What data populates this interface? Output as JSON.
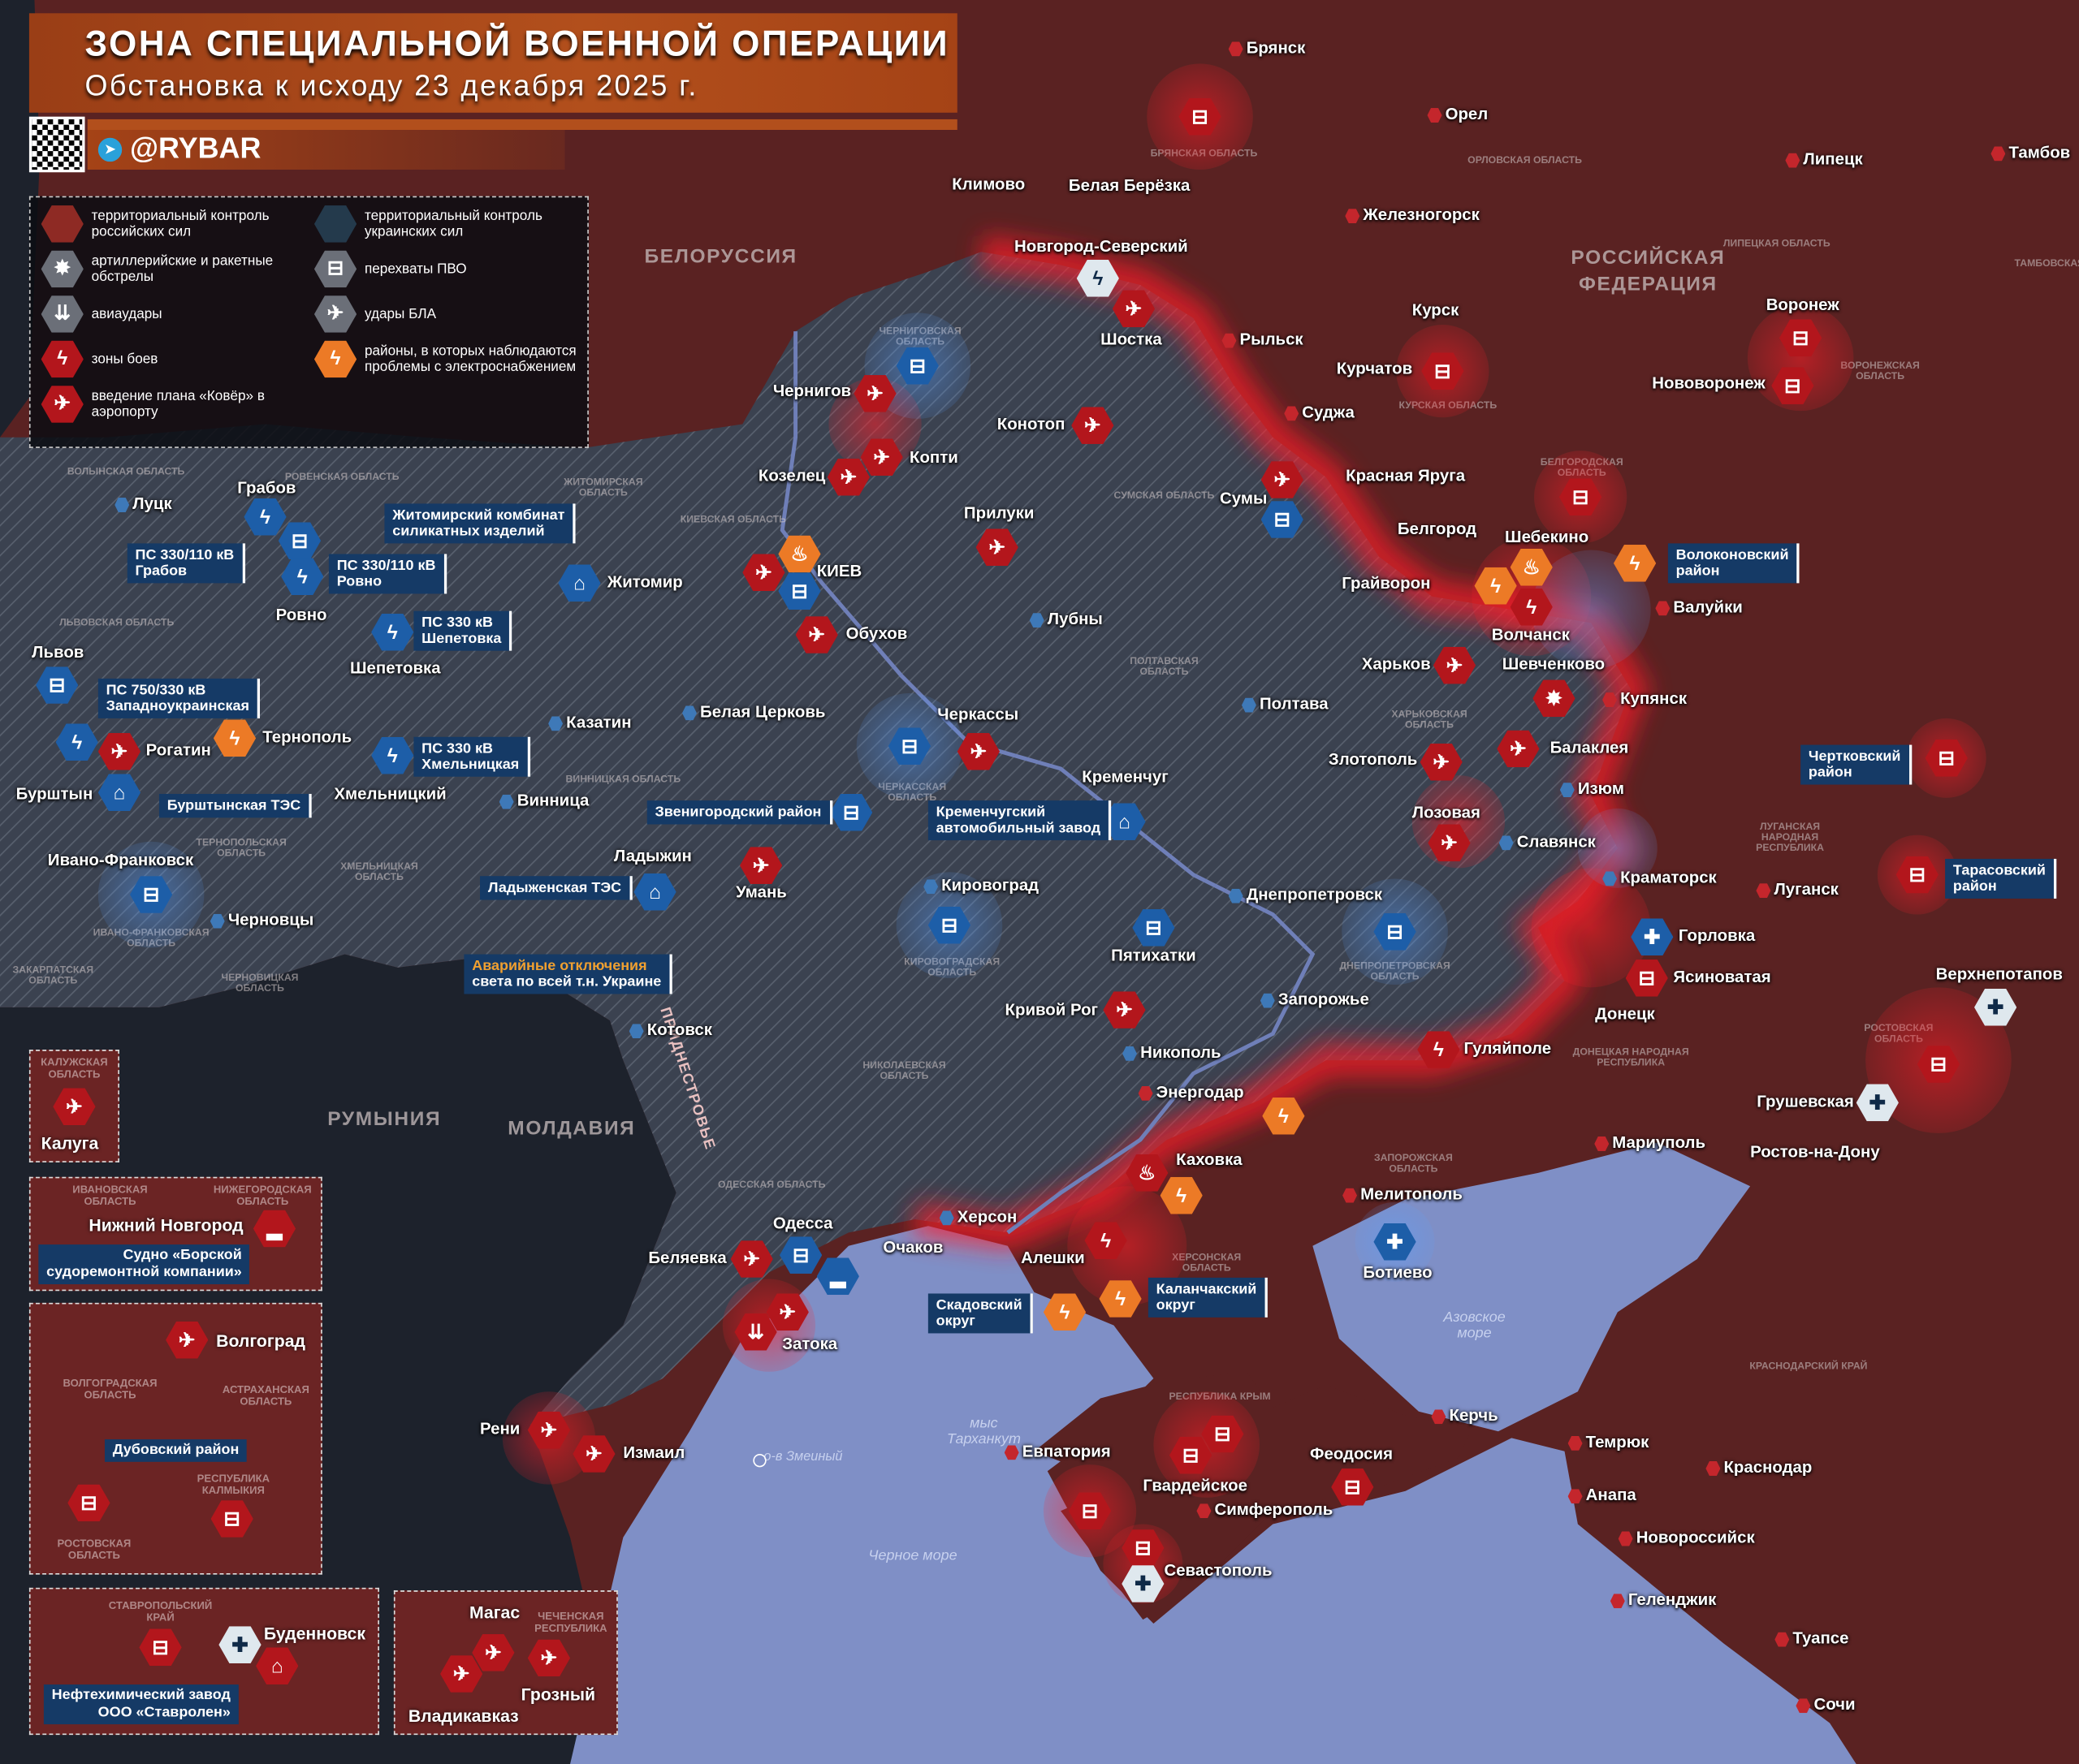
{
  "header": {
    "title": "ЗОНА СПЕЦИАЛЬНОЙ ВОЕННОЙ ОПЕРАЦИИ",
    "subtitle": "Обстановка к исходу 23 декабря 2025 г.",
    "channel": "@RYBAR"
  },
  "colors": {
    "russia": "#5a2222",
    "ukraine": "#3b4250",
    "sea": "#7f8fc6",
    "strike": "#b3161c",
    "ukr_marker": "#1d5ea8",
    "power": "#ec7a26",
    "callout": "#153a66"
  },
  "legend": [
    {
      "icon": "russia-control-hex",
      "label": "территориальный контроль российских сил"
    },
    {
      "icon": "ukraine-control-hex",
      "label": "территориальный контроль украинских сил"
    },
    {
      "icon": "artillery-icon",
      "label": "артиллерийские и ракетные обстрелы"
    },
    {
      "icon": "air-defense-icon",
      "label": "перехваты ПВО"
    },
    {
      "icon": "airstrike-icon",
      "label": "авиаудары"
    },
    {
      "icon": "drone-icon",
      "label": "удары БЛА"
    },
    {
      "icon": "battle-zone-icon",
      "label": "зоны боев"
    },
    {
      "icon": "power-outage-icon",
      "label": "районы, в которых наблюдаются проблемы с электроснабжением"
    },
    {
      "icon": "kover-plan-icon",
      "label": "введение плана «Ковёр» в аэропорту"
    }
  ],
  "countries": [
    "БЕЛОРУССИЯ",
    "РОССИЙСКАЯ ФЕДЕРАЦИЯ",
    "РУМЫНИЯ",
    "МОЛДАВИЯ",
    "ПРИДНЕСТРОВЬЕ"
  ],
  "seas": [
    "Черное море",
    "Азовское море",
    "мыс Тарханкут",
    "о-в Змеиный"
  ],
  "regions": [
    "ВОЛЫНСКАЯ ОБЛАСТЬ",
    "РОВЕНСКАЯ ОБЛАСТЬ",
    "ЖИТОМИРСКАЯ ОБЛАСТЬ",
    "КИЕВСКАЯ ОБЛАСТЬ",
    "ЧЕРНИГОВСКАЯ ОБЛАСТЬ",
    "СУМСКАЯ ОБЛАСТЬ",
    "ЛЬВОВСКАЯ ОБЛАСТЬ",
    "ТЕРНОПОЛЬСКАЯ ОБЛАСТЬ",
    "ХМЕЛЬНИЦКАЯ ОБЛАСТЬ",
    "ВИННИЦКАЯ ОБЛАСТЬ",
    "ЧЕРКАССКАЯ ОБЛАСТЬ",
    "ПОЛТАВСКАЯ ОБЛАСТЬ",
    "ХАРЬКОВСКАЯ ОБЛАСТЬ",
    "ЛУГАНСКАЯ НАРОДНАЯ РЕСПУБЛИКА",
    "ДОНЕЦКАЯ НАРОДНАЯ РЕСПУБЛИКА",
    "ДНЕПРОПЕТРОВСКАЯ ОБЛАСТЬ",
    "КИРОВОГРАДСКАЯ ОБЛАСТЬ",
    "НИКОЛАЕВСКАЯ ОБЛАСТЬ",
    "ОДЕССКАЯ ОБЛАСТЬ",
    "ЗАПОРОЖСКАЯ ОБЛАСТЬ",
    "ХЕРСОНСКАЯ ОБЛАСТЬ",
    "ИВАНО-ФРАНКОВСКАЯ ОБЛАСТЬ",
    "ЧЕРНОВИЦКАЯ ОБЛАСТЬ",
    "ЗАКАРПАТСКАЯ ОБЛАСТЬ",
    "БРЯНСКАЯ ОБЛАСТЬ",
    "ОРЛОВСКАЯ ОБЛАСТЬ",
    "КУРСКАЯ ОБЛАСТЬ",
    "ЛИПЕЦКАЯ ОБЛАСТЬ",
    "ВОРОНЕЖСКАЯ ОБЛАСТЬ",
    "ТАМБОВСКАЯ ОБЛ",
    "БЕЛГОРОДСКАЯ ОБЛАСТЬ",
    "РОСТОВСКАЯ ОБЛАСТЬ",
    "РЕСПУБЛИКА КРЫМ",
    "КРАСНОДАРСКИЙ КРАЙ"
  ],
  "cities": [
    "Брянск",
    "Орел",
    "Липецк",
    "Тамбов",
    "Климово",
    "Белая Берёзка",
    "Железногорск",
    "Новгород-Северский",
    "Курск",
    "Воронеж",
    "Шостка",
    "Рыльск",
    "Курчатов",
    "Нововоронеж",
    "Чернигов",
    "Конотоп",
    "Суджа",
    "Копти",
    "Козелец",
    "Красная Яруга",
    "Сумы",
    "Прилуки",
    "Луцк",
    "Грабов",
    "Белгород",
    "Шебекино",
    "Житомир",
    "КИЕВ",
    "Грайворон",
    "Валуйки",
    "Ровно",
    "Лубны",
    "Обухов",
    "Волчанск",
    "Шепетовка",
    "Харьков",
    "Шевченково",
    "Львов",
    "Купянск",
    "Казатин",
    "Белая Церковь",
    "Черкассы",
    "Полтава",
    "Тернополь",
    "Рогатин",
    "Балаклея",
    "Кременчуг",
    "Злотополь",
    "Бурштын",
    "Изюм",
    "Хмельницкий",
    "Винница",
    "Лозовая",
    "Славянск",
    "Ладыжин",
    "Ивано-Франковск",
    "Кировоград",
    "Краматорск",
    "Луганск",
    "Днепропетровск",
    "Умань",
    "Черновцы",
    "Пятихатки",
    "Горловка",
    "Ясиноватая",
    "Верхнепотапов",
    "Кривой Рог",
    "Запорожье",
    "Донецк",
    "Котовск",
    "Никополь",
    "Гуляйполе",
    "Энергодар",
    "Грушевская",
    "Мариуполь",
    "Ростов-на-Дону",
    "Каховка",
    "Мелитополь",
    "Херсон",
    "Очаков",
    "Алешки",
    "Беляевка",
    "Одесса",
    "Ботиево",
    "Затока",
    "Рени",
    "Измаил",
    "Керчь",
    "Темрюк",
    "Евпатория",
    "Феодосия",
    "Краснодар",
    "Гвардейское",
    "Симферополь",
    "Анапа",
    "Новороссийск",
    "Севастополь",
    "Геленджик",
    "Туапсе",
    "Сочи"
  ],
  "callouts": [
    [
      "ПС 330/110 кВ",
      "Грабов"
    ],
    [
      "ПС 330/110 кВ",
      "Ровно"
    ],
    [
      "Житомирский комбинат",
      "силикатных изделий"
    ],
    [
      "ПС 330 кВ",
      "Шепетовка"
    ],
    [
      "ПС 750/330 кВ",
      "Западноукраинская"
    ],
    [
      "Бурштынская ТЭС",
      ""
    ],
    [
      "ПС 330 кВ",
      "Хмельницкая"
    ],
    [
      "Ладыженская ТЭС",
      ""
    ],
    [
      "Звенигородский район",
      ""
    ],
    [
      "Кременчугский",
      "автомобильный завод"
    ],
    [
      "Аварийные отключения",
      "света по всей т.н. Украине"
    ],
    [
      "Волоконовский",
      "район"
    ],
    [
      "Чертковский",
      "район"
    ],
    [
      "Тарасовский",
      "район"
    ],
    [
      "Скадовский",
      "округ"
    ],
    [
      "Каланчакский",
      "округ"
    ]
  ],
  "markers": [
    {
      "icon": "air-defense",
      "side": "red"
    },
    {
      "icon": "battle-zone",
      "side": "white"
    },
    {
      "icon": "drone",
      "side": "red"
    },
    {
      "icon": "drone",
      "side": "red"
    },
    {
      "icon": "air-defense",
      "side": "blue"
    },
    {
      "icon": "drone",
      "side": "red"
    },
    {
      "icon": "drone",
      "side": "red"
    },
    {
      "icon": "drone",
      "side": "red"
    },
    {
      "icon": "drone",
      "side": "red"
    },
    {
      "icon": "air-defense",
      "side": "blue"
    },
    {
      "icon": "drone",
      "side": "red"
    },
    {
      "icon": "air-defense",
      "side": "red"
    },
    {
      "icon": "air-defense",
      "side": "red"
    },
    {
      "icon": "air-defense",
      "side": "red"
    },
    {
      "icon": "air-defense",
      "side": "red"
    },
    {
      "icon": "battle-zone",
      "side": "blue"
    },
    {
      "icon": "air-defense",
      "side": "blue"
    },
    {
      "icon": "battle-zone",
      "side": "blue"
    },
    {
      "icon": "factory",
      "side": "blue"
    },
    {
      "icon": "drone",
      "side": "red"
    },
    {
      "icon": "fire",
      "side": "orange"
    },
    {
      "icon": "air-defense",
      "side": "blue"
    },
    {
      "icon": "drone",
      "side": "red"
    },
    {
      "icon": "battle-zone",
      "side": "blue"
    },
    {
      "icon": "air-defense",
      "side": "blue"
    },
    {
      "icon": "battle-zone",
      "side": "blue"
    },
    {
      "icon": "drone",
      "side": "red"
    },
    {
      "icon": "power-outage",
      "side": "orange"
    },
    {
      "icon": "factory",
      "side": "blue"
    },
    {
      "icon": "battle-zone",
      "side": "blue"
    },
    {
      "icon": "air-defense",
      "side": "blue"
    },
    {
      "icon": "air-defense",
      "side": "blue"
    },
    {
      "icon": "drone",
      "side": "red"
    },
    {
      "icon": "air-defense",
      "side": "blue"
    },
    {
      "icon": "factory",
      "side": "blue"
    },
    {
      "icon": "drone",
      "side": "red"
    },
    {
      "icon": "factory",
      "side": "blue"
    },
    {
      "icon": "air-defense",
      "side": "blue"
    },
    {
      "icon": "air-defense",
      "side": "blue"
    },
    {
      "icon": "drone",
      "side": "red"
    },
    {
      "icon": "air-defense",
      "side": "blue"
    },
    {
      "icon": "drone",
      "side": "red"
    },
    {
      "icon": "drone",
      "side": "red"
    },
    {
      "icon": "artillery",
      "side": "red"
    },
    {
      "icon": "drone",
      "side": "red"
    },
    {
      "icon": "drone",
      "side": "red"
    },
    {
      "icon": "battle-zone",
      "side": "red"
    },
    {
      "icon": "power-outage",
      "side": "orange"
    },
    {
      "icon": "fire",
      "side": "orange"
    },
    {
      "icon": "power-outage",
      "side": "orange"
    },
    {
      "icon": "drone-ukr",
      "side": "blue"
    },
    {
      "icon": "air-defense",
      "side": "red"
    },
    {
      "icon": "battle-zone",
      "side": "red"
    },
    {
      "icon": "power-outage",
      "side": "orange"
    },
    {
      "icon": "fire",
      "side": "red"
    },
    {
      "icon": "power-outage",
      "side": "orange"
    },
    {
      "icon": "battle-zone",
      "side": "red"
    },
    {
      "icon": "power-outage",
      "side": "orange"
    },
    {
      "icon": "power-outage",
      "side": "orange"
    },
    {
      "icon": "drone-ukr",
      "side": "blue"
    },
    {
      "icon": "air-defense",
      "side": "blue"
    },
    {
      "icon": "drone",
      "side": "red"
    },
    {
      "icon": "drone",
      "side": "red"
    },
    {
      "icon": "airstrike",
      "side": "red"
    },
    {
      "icon": "drone",
      "side": "red"
    },
    {
      "icon": "drone",
      "side": "red"
    },
    {
      "icon": "air-defense",
      "side": "red"
    },
    {
      "icon": "air-defense",
      "side": "red"
    },
    {
      "icon": "air-defense",
      "side": "red"
    },
    {
      "icon": "air-defense",
      "side": "red"
    },
    {
      "icon": "drone-ukr",
      "side": "white"
    },
    {
      "icon": "air-defense",
      "side": "red"
    },
    {
      "icon": "air-defense",
      "side": "red"
    },
    {
      "icon": "air-defense",
      "side": "red"
    },
    {
      "icon": "drone-ukr",
      "side": "white"
    },
    {
      "icon": "air-defense",
      "side": "red"
    },
    {
      "icon": "drone-ukr",
      "side": "white"
    },
    {
      "icon": "ship",
      "side": "blue"
    }
  ],
  "insets": {
    "kaluga": {
      "region": "КАЛУЖСКАЯ ОБЛАСТЬ",
      "city": "Калуга"
    },
    "nizhny": {
      "region1": "ИВАНОВСКАЯ ОБЛАСТЬ",
      "region2": "НИЖЕГОРОДСКАЯ ОБЛАСТЬ",
      "city": "Нижний Новгород",
      "callout1": "Судно «Борской",
      "callout2": "судоремонтной компании»"
    },
    "volgograd": {
      "city": "Волгоград",
      "region1": "ВОЛГОГРАДСКАЯ ОБЛАСТЬ",
      "region2": "АСТРАХАНСКАЯ ОБЛАСТЬ",
      "callout": "Дубовский район",
      "region3": "РОСТОВСКАЯ ОБЛАСТЬ",
      "region4": "РЕСПУБЛИКА КАЛМЫКИЯ"
    },
    "stavropol": {
      "region": "СТАВРОПОЛЬСКИЙ КРАЙ",
      "city": "Буденновск",
      "callout1": "Нефтехимический завод",
      "callout2": "ООО «Ставролен»"
    },
    "caucasus": {
      "city1": "Магас",
      "region": "ЧЕЧЕНСКАЯ РЕСПУБЛИКА",
      "city2": "Грозный",
      "city3": "Владикавказ"
    }
  }
}
